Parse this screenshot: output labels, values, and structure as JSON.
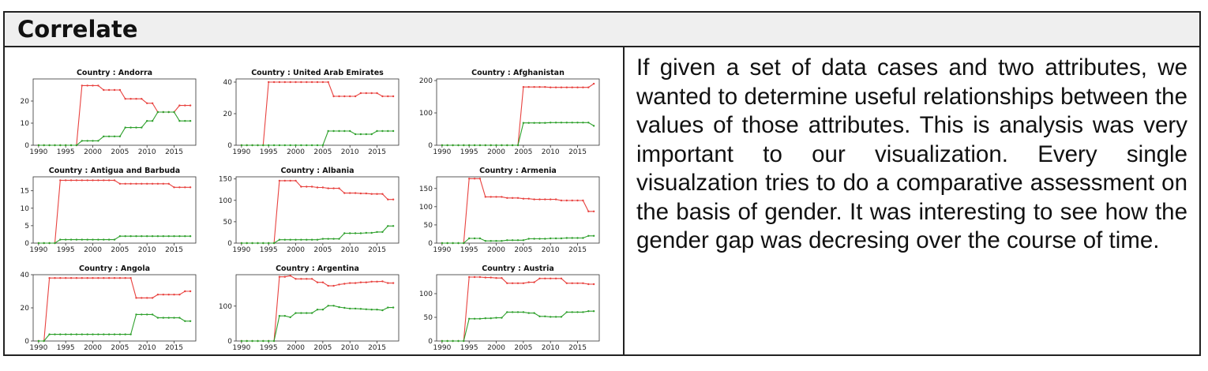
{
  "header": {
    "title": "Correlate"
  },
  "description": "If given a set of data cases and two attributes, we wanted to determine useful relationships between the values of those attributes. This is analysis was very important to our visualization. Every single visualzation tries to do a comparative assessment on the basis of gender. It was interesting to see how the gender gap was decresing over the course of time.",
  "colors": {
    "series_a": "#e8423f",
    "series_b": "#2ea02c",
    "frame": "#333333"
  },
  "chart_data": [
    {
      "type": "line",
      "title": "Country : Andorra",
      "x": [
        1990,
        1991,
        1992,
        1993,
        1994,
        1995,
        1996,
        1997,
        1998,
        1999,
        2000,
        2001,
        2002,
        2003,
        2004,
        2005,
        2006,
        2007,
        2008,
        2009,
        2010,
        2011,
        2012,
        2013,
        2014,
        2015,
        2016,
        2017,
        2018
      ],
      "xlim": [
        1989,
        2019
      ],
      "xticks": [
        1990,
        1995,
        2000,
        2005,
        2010,
        2015
      ],
      "ylim": [
        0,
        30
      ],
      "yticks": [
        0,
        10,
        20
      ],
      "ytick_labels": [
        "0",
        "10",
        "20"
      ],
      "series": [
        {
          "values": [
            0,
            0,
            0,
            0,
            0,
            0,
            0,
            0,
            27,
            27,
            27,
            27,
            25,
            25,
            25,
            25,
            21,
            21,
            21,
            21,
            19,
            19,
            15,
            15,
            15,
            15,
            18,
            18,
            18
          ]
        },
        {
          "values": [
            0,
            0,
            0,
            0,
            0,
            0,
            0,
            0,
            2,
            2,
            2,
            2,
            4,
            4,
            4,
            4,
            8,
            8,
            8,
            8,
            11,
            11,
            15,
            15,
            15,
            15,
            11,
            11,
            11
          ]
        }
      ]
    },
    {
      "type": "line",
      "title": "Country : United Arab Emirates",
      "x": [
        1990,
        1991,
        1992,
        1993,
        1994,
        1995,
        1996,
        1997,
        1998,
        1999,
        2000,
        2001,
        2002,
        2003,
        2004,
        2005,
        2006,
        2007,
        2008,
        2009,
        2010,
        2011,
        2012,
        2013,
        2014,
        2015,
        2016,
        2017,
        2018
      ],
      "xlim": [
        1989,
        2019
      ],
      "xticks": [
        1990,
        1995,
        2000,
        2005,
        2010,
        2015
      ],
      "ylim": [
        0,
        42
      ],
      "yticks": [
        0,
        20,
        40
      ],
      "ytick_labels": [
        "0",
        "20",
        "40"
      ],
      "series": [
        {
          "values": [
            0,
            0,
            0,
            0,
            0,
            40,
            40,
            40,
            40,
            40,
            40,
            40,
            40,
            40,
            40,
            40,
            40,
            31,
            31,
            31,
            31,
            31,
            33,
            33,
            33,
            33,
            31,
            31,
            31
          ]
        },
        {
          "values": [
            0,
            0,
            0,
            0,
            0,
            0,
            0,
            0,
            0,
            0,
            0,
            0,
            0,
            0,
            0,
            0,
            9,
            9,
            9,
            9,
            9,
            7,
            7,
            7,
            7,
            9,
            9,
            9,
            9
          ]
        }
      ]
    },
    {
      "type": "line",
      "title": "Country : Afghanistan",
      "x": [
        1990,
        1991,
        1992,
        1993,
        1994,
        1995,
        1996,
        1997,
        1998,
        1999,
        2000,
        2001,
        2002,
        2003,
        2004,
        2005,
        2006,
        2007,
        2008,
        2009,
        2010,
        2011,
        2012,
        2013,
        2014,
        2015,
        2016,
        2017,
        2018
      ],
      "xlim": [
        1989,
        2019
      ],
      "xticks": [
        1990,
        1995,
        2000,
        2005,
        2010,
        2015
      ],
      "ylim": [
        0,
        205
      ],
      "yticks": [
        0,
        100,
        200
      ],
      "ytick_labels": [
        "0",
        "100",
        "200"
      ],
      "series": [
        {
          "values": [
            0,
            0,
            0,
            0,
            0,
            0,
            0,
            0,
            0,
            0,
            0,
            0,
            0,
            0,
            0,
            180,
            180,
            180,
            180,
            180,
            179,
            179,
            179,
            179,
            179,
            179,
            179,
            179,
            190
          ]
        },
        {
          "values": [
            0,
            0,
            0,
            0,
            0,
            0,
            0,
            0,
            0,
            0,
            0,
            0,
            0,
            0,
            0,
            69,
            69,
            69,
            69,
            69,
            70,
            70,
            70,
            70,
            70,
            70,
            70,
            70,
            60
          ]
        }
      ]
    },
    {
      "type": "line",
      "title": "Country : Antigua and Barbuda",
      "x": [
        1990,
        1991,
        1992,
        1993,
        1994,
        1995,
        1996,
        1997,
        1998,
        1999,
        2000,
        2001,
        2002,
        2003,
        2004,
        2005,
        2006,
        2007,
        2008,
        2009,
        2010,
        2011,
        2012,
        2013,
        2014,
        2015,
        2016,
        2017,
        2018
      ],
      "xlim": [
        1989,
        2019
      ],
      "xticks": [
        1990,
        1995,
        2000,
        2005,
        2010,
        2015
      ],
      "ylim": [
        0,
        19
      ],
      "yticks": [
        0,
        5,
        10,
        15
      ],
      "ytick_labels": [
        "0",
        "5",
        "10",
        "15"
      ],
      "series": [
        {
          "values": [
            0,
            0,
            0,
            0,
            18,
            18,
            18,
            18,
            18,
            18,
            18,
            18,
            18,
            18,
            18,
            17,
            17,
            17,
            17,
            17,
            17,
            17,
            17,
            17,
            17,
            16,
            16,
            16,
            16
          ]
        },
        {
          "values": [
            0,
            0,
            0,
            0,
            1,
            1,
            1,
            1,
            1,
            1,
            1,
            1,
            1,
            1,
            1,
            2,
            2,
            2,
            2,
            2,
            2,
            2,
            2,
            2,
            2,
            2,
            2,
            2,
            2
          ]
        }
      ]
    },
    {
      "type": "line",
      "title": "Country : Albania",
      "x": [
        1990,
        1991,
        1992,
        1993,
        1994,
        1995,
        1996,
        1997,
        1998,
        1999,
        2000,
        2001,
        2002,
        2003,
        2004,
        2005,
        2006,
        2007,
        2008,
        2009,
        2010,
        2011,
        2012,
        2013,
        2014,
        2015,
        2016,
        2017,
        2018
      ],
      "xlim": [
        1989,
        2019
      ],
      "xticks": [
        1990,
        1995,
        2000,
        2005,
        2010,
        2015
      ],
      "ylim": [
        0,
        155
      ],
      "yticks": [
        0,
        50,
        100,
        150
      ],
      "ytick_labels": [
        "0",
        "50",
        "100",
        "150"
      ],
      "series": [
        {
          "values": [
            0,
            0,
            0,
            0,
            0,
            0,
            0,
            146,
            146,
            146,
            146,
            132,
            132,
            132,
            130,
            130,
            128,
            128,
            128,
            117,
            117,
            117,
            116,
            116,
            115,
            115,
            115,
            102,
            102
          ]
        },
        {
          "values": [
            0,
            0,
            0,
            0,
            0,
            0,
            0,
            8,
            8,
            8,
            8,
            8,
            8,
            8,
            8,
            10,
            10,
            10,
            10,
            23,
            23,
            23,
            23,
            24,
            24,
            26,
            26,
            40,
            40
          ]
        }
      ]
    },
    {
      "type": "line",
      "title": "Country : Armenia",
      "x": [
        1990,
        1991,
        1992,
        1993,
        1994,
        1995,
        1996,
        1997,
        1998,
        1999,
        2000,
        2001,
        2002,
        2003,
        2004,
        2005,
        2006,
        2007,
        2008,
        2009,
        2010,
        2011,
        2012,
        2013,
        2014,
        2015,
        2016,
        2017,
        2018
      ],
      "xlim": [
        1989,
        2019
      ],
      "xticks": [
        1990,
        1995,
        2000,
        2005,
        2010,
        2015
      ],
      "ylim": [
        0,
        182
      ],
      "yticks": [
        0,
        50,
        100,
        150
      ],
      "ytick_labels": [
        "0",
        "50",
        "100",
        "150"
      ],
      "series": [
        {
          "values": [
            0,
            0,
            0,
            0,
            0,
            177,
            177,
            177,
            127,
            127,
            127,
            127,
            124,
            124,
            124,
            122,
            122,
            120,
            120,
            120,
            120,
            120,
            117,
            117,
            117,
            117,
            117,
            87,
            87
          ]
        },
        {
          "values": [
            0,
            0,
            0,
            0,
            0,
            13,
            13,
            13,
            6,
            6,
            6,
            6,
            8,
            8,
            8,
            8,
            12,
            12,
            12,
            12,
            13,
            13,
            13,
            14,
            14,
            14,
            14,
            20,
            20
          ]
        }
      ]
    },
    {
      "type": "line",
      "title": "Country : Angola",
      "x": [
        1990,
        1991,
        1992,
        1993,
        1994,
        1995,
        1996,
        1997,
        1998,
        1999,
        2000,
        2001,
        2002,
        2003,
        2004,
        2005,
        2006,
        2007,
        2008,
        2009,
        2010,
        2011,
        2012,
        2013,
        2014,
        2015,
        2016,
        2017,
        2018
      ],
      "xlim": [
        1989,
        2019
      ],
      "xticks": [
        1990,
        1995,
        2000,
        2005,
        2010,
        2015
      ],
      "ylim": [
        0,
        40
      ],
      "yticks": [
        0,
        20,
        40
      ],
      "ytick_labels": [
        "0",
        "20",
        "40"
      ],
      "series": [
        {
          "values": [
            0,
            0,
            38,
            38,
            38,
            38,
            38,
            38,
            38,
            38,
            38,
            38,
            38,
            38,
            38,
            38,
            38,
            38,
            26,
            26,
            26,
            26,
            28,
            28,
            28,
            28,
            28,
            30,
            30
          ]
        },
        {
          "values": [
            0,
            0,
            4,
            4,
            4,
            4,
            4,
            4,
            4,
            4,
            4,
            4,
            4,
            4,
            4,
            4,
            4,
            4,
            16,
            16,
            16,
            16,
            14,
            14,
            14,
            14,
            14,
            12,
            12
          ]
        }
      ]
    },
    {
      "type": "line",
      "title": "Country : Argentina",
      "x": [
        1990,
        1991,
        1992,
        1993,
        1994,
        1995,
        1996,
        1997,
        1998,
        1999,
        2000,
        2001,
        2002,
        2003,
        2004,
        2005,
        2006,
        2007,
        2008,
        2009,
        2010,
        2011,
        2012,
        2013,
        2014,
        2015,
        2016,
        2017,
        2018
      ],
      "xlim": [
        1989,
        2019
      ],
      "xticks": [
        1990,
        1995,
        2000,
        2005,
        2010,
        2015
      ],
      "ylim": [
        0,
        190
      ],
      "yticks": [
        0,
        100
      ],
      "ytick_labels": [
        "0",
        "100"
      ],
      "series": [
        {
          "values": [
            0,
            0,
            0,
            0,
            0,
            0,
            0,
            184,
            184,
            187,
            178,
            178,
            178,
            178,
            168,
            168,
            158,
            158,
            162,
            164,
            166,
            166,
            168,
            168,
            170,
            170,
            171,
            166,
            166
          ]
        },
        {
          "values": [
            0,
            0,
            0,
            0,
            0,
            0,
            0,
            72,
            72,
            68,
            80,
            80,
            80,
            80,
            90,
            90,
            101,
            101,
            97,
            95,
            93,
            93,
            92,
            91,
            90,
            90,
            88,
            96,
            96
          ]
        }
      ]
    },
    {
      "type": "line",
      "title": "Country : Austria",
      "x": [
        1990,
        1991,
        1992,
        1993,
        1994,
        1995,
        1996,
        1997,
        1998,
        1999,
        2000,
        2001,
        2002,
        2003,
        2004,
        2005,
        2006,
        2007,
        2008,
        2009,
        2010,
        2011,
        2012,
        2013,
        2014,
        2015,
        2016,
        2017,
        2018
      ],
      "xlim": [
        1989,
        2019
      ],
      "xticks": [
        1990,
        1995,
        2000,
        2005,
        2010,
        2015
      ],
      "ylim": [
        0,
        140
      ],
      "yticks": [
        0,
        50,
        100
      ],
      "ytick_labels": [
        "0",
        "50",
        "100"
      ],
      "series": [
        {
          "values": [
            0,
            0,
            0,
            0,
            0,
            135,
            135,
            135,
            134,
            134,
            133,
            133,
            122,
            122,
            122,
            122,
            124,
            124,
            132,
            132,
            132,
            132,
            132,
            122,
            122,
            122,
            122,
            120,
            120
          ]
        },
        {
          "values": [
            0,
            0,
            0,
            0,
            0,
            47,
            47,
            47,
            48,
            48,
            49,
            49,
            61,
            61,
            61,
            61,
            59,
            59,
            52,
            52,
            51,
            51,
            51,
            61,
            61,
            61,
            61,
            63,
            63
          ]
        }
      ]
    }
  ]
}
